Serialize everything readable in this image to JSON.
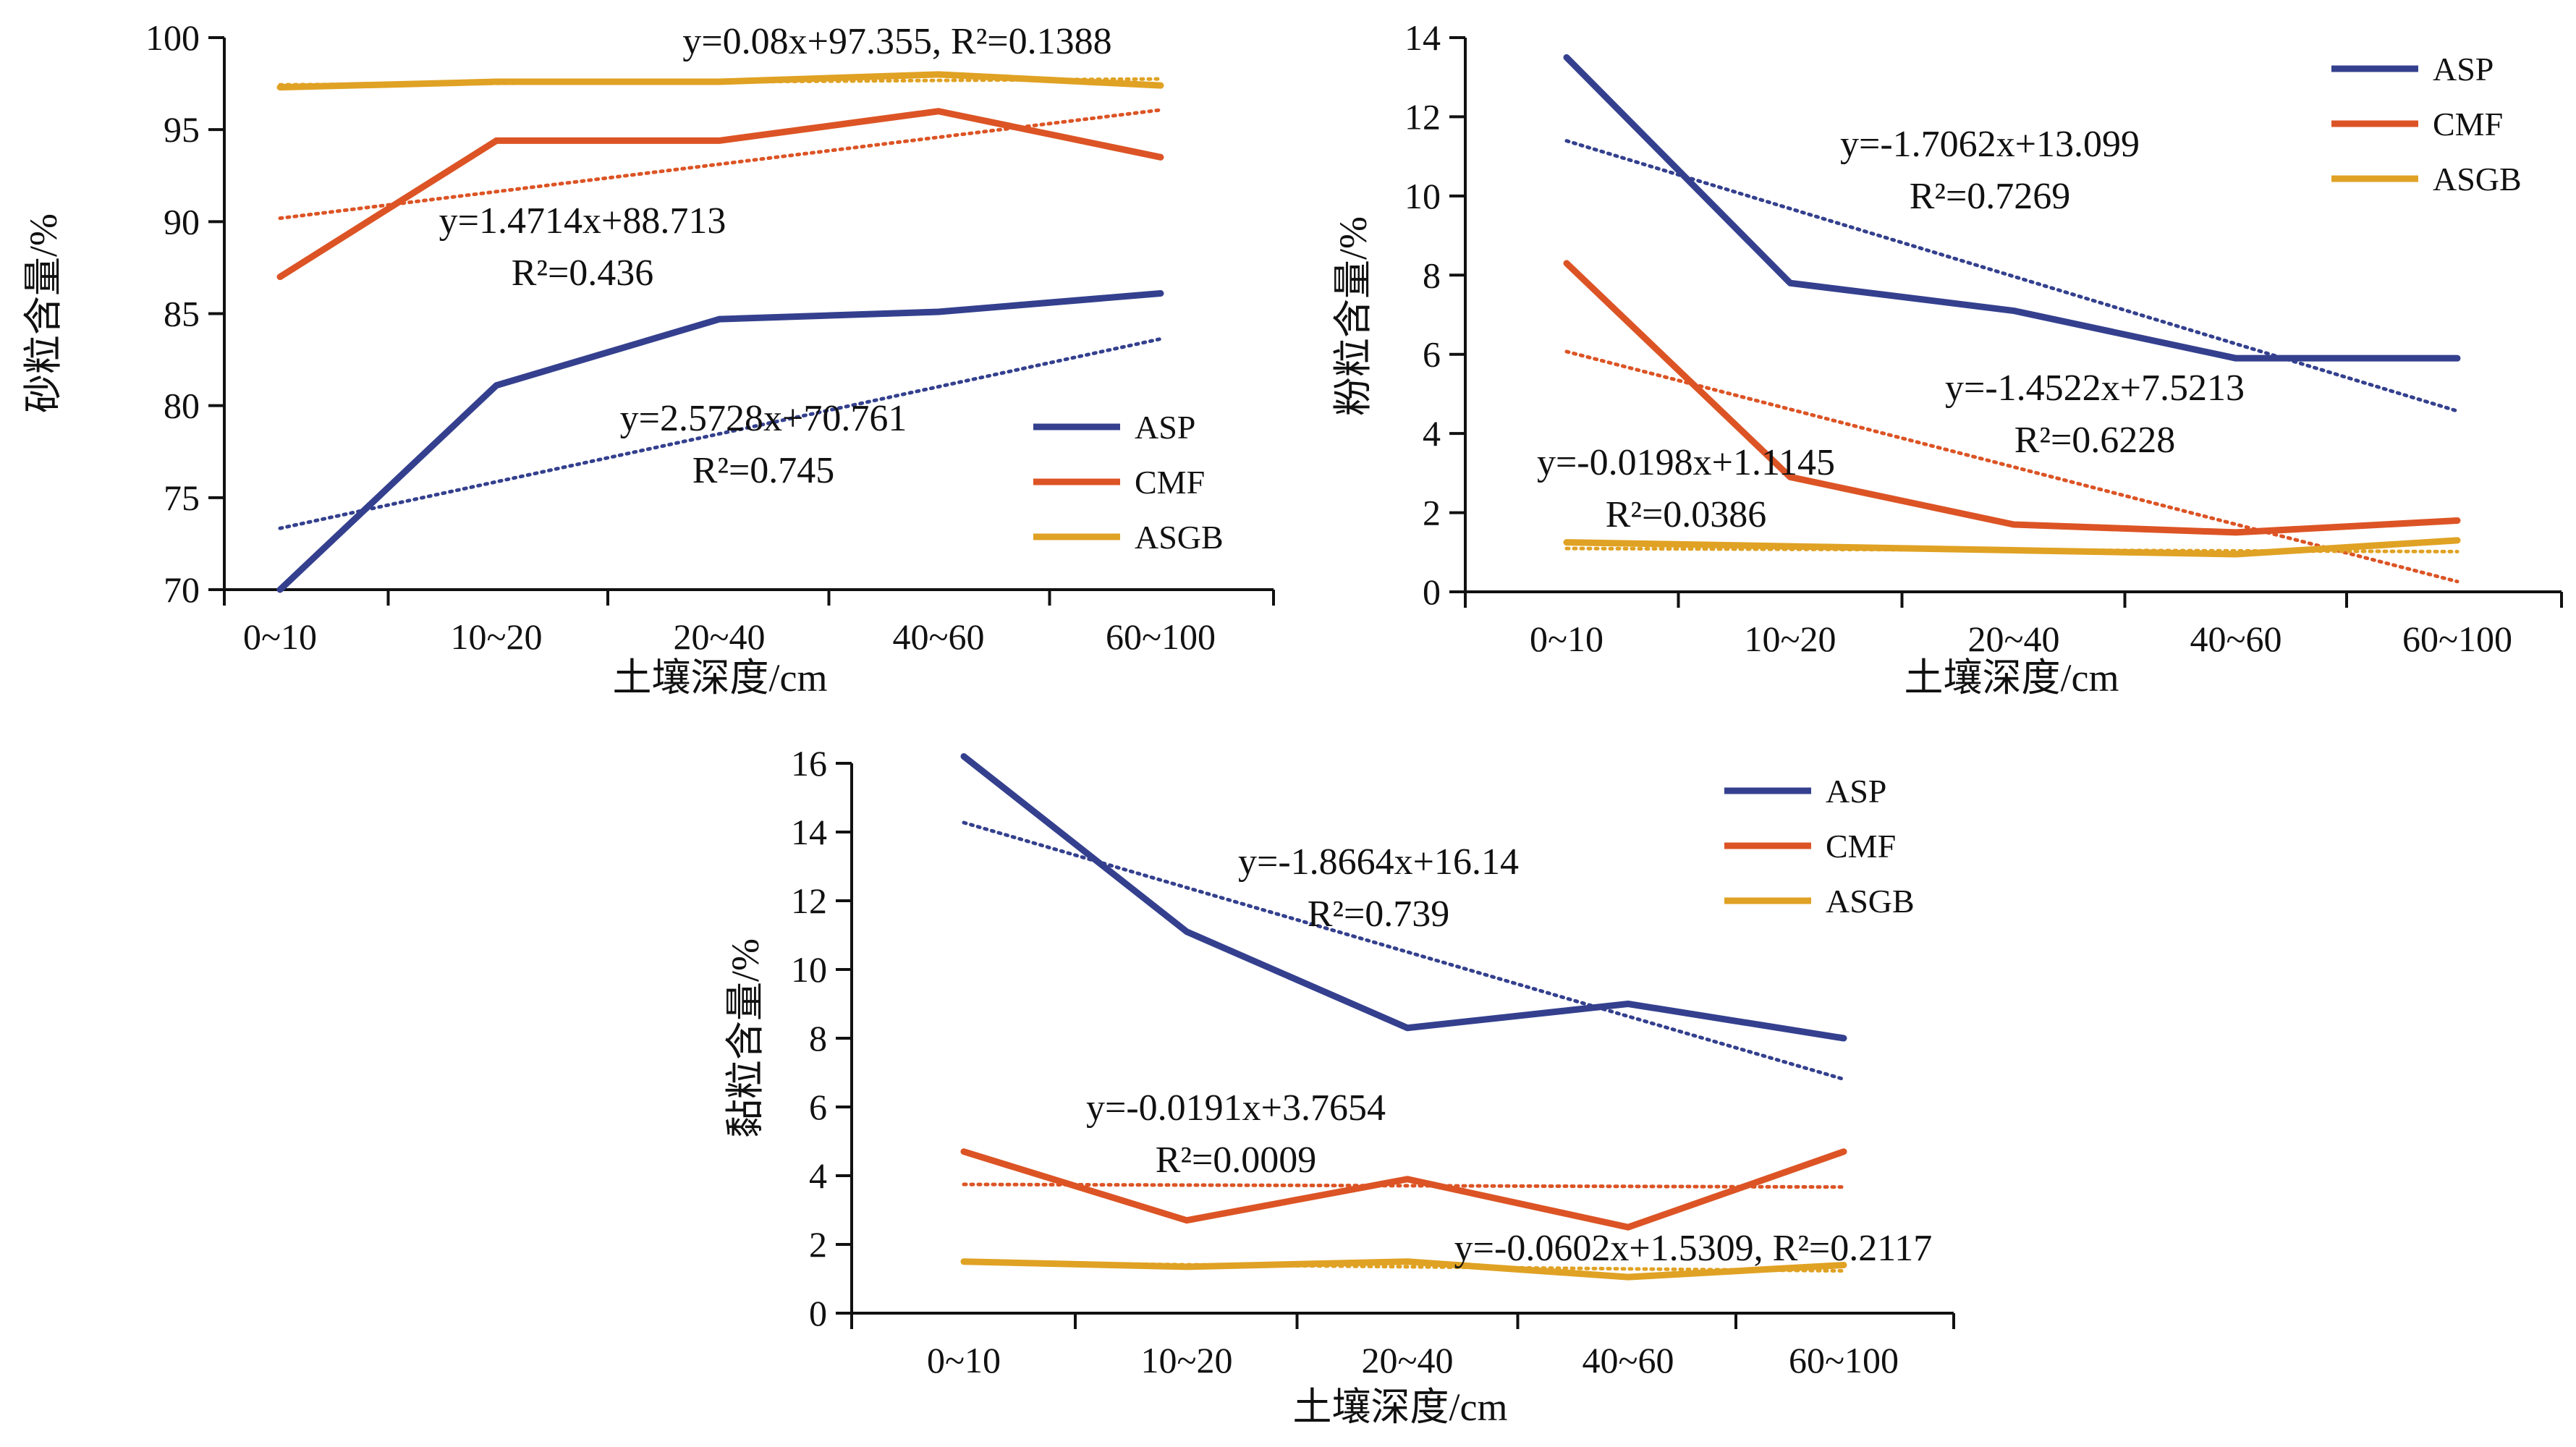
{
  "colors": {
    "ASP": "#34408e",
    "CMF": "#dc5425",
    "ASGB": "#e0a224",
    "axis": "#111111"
  },
  "chart_data": [
    {
      "type": "line",
      "id": "sand",
      "categories": [
        "0~10",
        "10~20",
        "20~40",
        "40~60",
        "60~100"
      ],
      "xlabel": "土壤深度/cm",
      "ylabel": "砂粒含量/%",
      "ylim": [
        70,
        100
      ],
      "yticks": [
        70,
        75,
        80,
        85,
        90,
        95,
        100
      ],
      "grid": false,
      "legend_position": "bottom-right",
      "series": [
        {
          "name": "ASP",
          "values": [
            70.0,
            81.1,
            84.7,
            85.1,
            86.1
          ],
          "trend": {
            "slope": 2.5728,
            "intercept": 70.761
          }
        },
        {
          "name": "CMF",
          "values": [
            87.0,
            94.4,
            94.4,
            96.0,
            93.5
          ],
          "trend": {
            "slope": 1.4714,
            "intercept": 88.713
          }
        },
        {
          "name": "ASGB",
          "values": [
            97.3,
            97.6,
            97.6,
            98.0,
            97.4
          ],
          "trend": {
            "slope": 0.08,
            "intercept": 97.355
          }
        }
      ],
      "annotations": [
        {
          "series": "ASGB",
          "lines": [
            "y=0.08x+97.355, R²=0.1388"
          ]
        },
        {
          "series": "CMF",
          "lines": [
            "y=1.4714x+88.713",
            "R²=0.436"
          ]
        },
        {
          "series": "ASP",
          "lines": [
            "y=2.5728x+70.761",
            "R²=0.745"
          ]
        }
      ]
    },
    {
      "type": "line",
      "id": "silt",
      "categories": [
        "0~10",
        "10~20",
        "20~40",
        "40~60",
        "60~100"
      ],
      "xlabel": "土壤深度/cm",
      "ylabel": "粉粒含量/%",
      "ylim": [
        0,
        14
      ],
      "yticks": [
        0,
        2,
        4,
        6,
        8,
        10,
        12,
        14
      ],
      "grid": false,
      "legend_position": "top-right",
      "series": [
        {
          "name": "ASP",
          "values": [
            13.5,
            7.8,
            7.1,
            5.9,
            5.9
          ],
          "trend": {
            "slope": -1.7062,
            "intercept": 13.099
          }
        },
        {
          "name": "CMF",
          "values": [
            8.3,
            2.9,
            1.7,
            1.5,
            1.8
          ],
          "trend": {
            "slope": -1.4522,
            "intercept": 7.5213
          }
        },
        {
          "name": "ASGB",
          "values": [
            1.25,
            1.15,
            1.05,
            0.95,
            1.3
          ],
          "trend": {
            "slope": -0.0198,
            "intercept": 1.1145
          }
        }
      ],
      "annotations": [
        {
          "series": "ASP",
          "lines": [
            "y=-1.7062x+13.099",
            "R²=0.7269"
          ]
        },
        {
          "series": "CMF",
          "lines": [
            "y=-1.4522x+7.5213",
            "R²=0.6228"
          ]
        },
        {
          "series": "ASGB",
          "lines": [
            "y=-0.0198x+1.1145",
            "R²=0.0386"
          ]
        }
      ]
    },
    {
      "type": "line",
      "id": "clay",
      "categories": [
        "0~10",
        "10~20",
        "20~40",
        "40~60",
        "60~100"
      ],
      "xlabel": "土壤深度/cm",
      "ylabel": "黏粒含量/%",
      "ylim": [
        0,
        16
      ],
      "yticks": [
        0,
        2,
        4,
        6,
        8,
        10,
        12,
        14,
        16
      ],
      "grid": false,
      "legend_position": "top-right",
      "series": [
        {
          "name": "ASP",
          "values": [
            16.2,
            11.1,
            8.3,
            9.0,
            8.0
          ],
          "trend": {
            "slope": -1.8664,
            "intercept": 16.14
          }
        },
        {
          "name": "CMF",
          "values": [
            4.7,
            2.7,
            3.9,
            2.5,
            4.7
          ],
          "trend": {
            "slope": -0.0191,
            "intercept": 3.7654
          }
        },
        {
          "name": "ASGB",
          "values": [
            1.5,
            1.35,
            1.5,
            1.05,
            1.4
          ],
          "trend": {
            "slope": -0.0602,
            "intercept": 1.5309
          }
        }
      ],
      "annotations": [
        {
          "series": "ASP",
          "lines": [
            "y=-1.8664x+16.14",
            "R²=0.739"
          ]
        },
        {
          "series": "CMF",
          "lines": [
            "y=-0.0191x+3.7654",
            "R²=0.0009"
          ]
        },
        {
          "series": "ASGB",
          "lines": [
            "y=-0.0602x+1.5309, R²=0.2117"
          ]
        }
      ]
    }
  ]
}
